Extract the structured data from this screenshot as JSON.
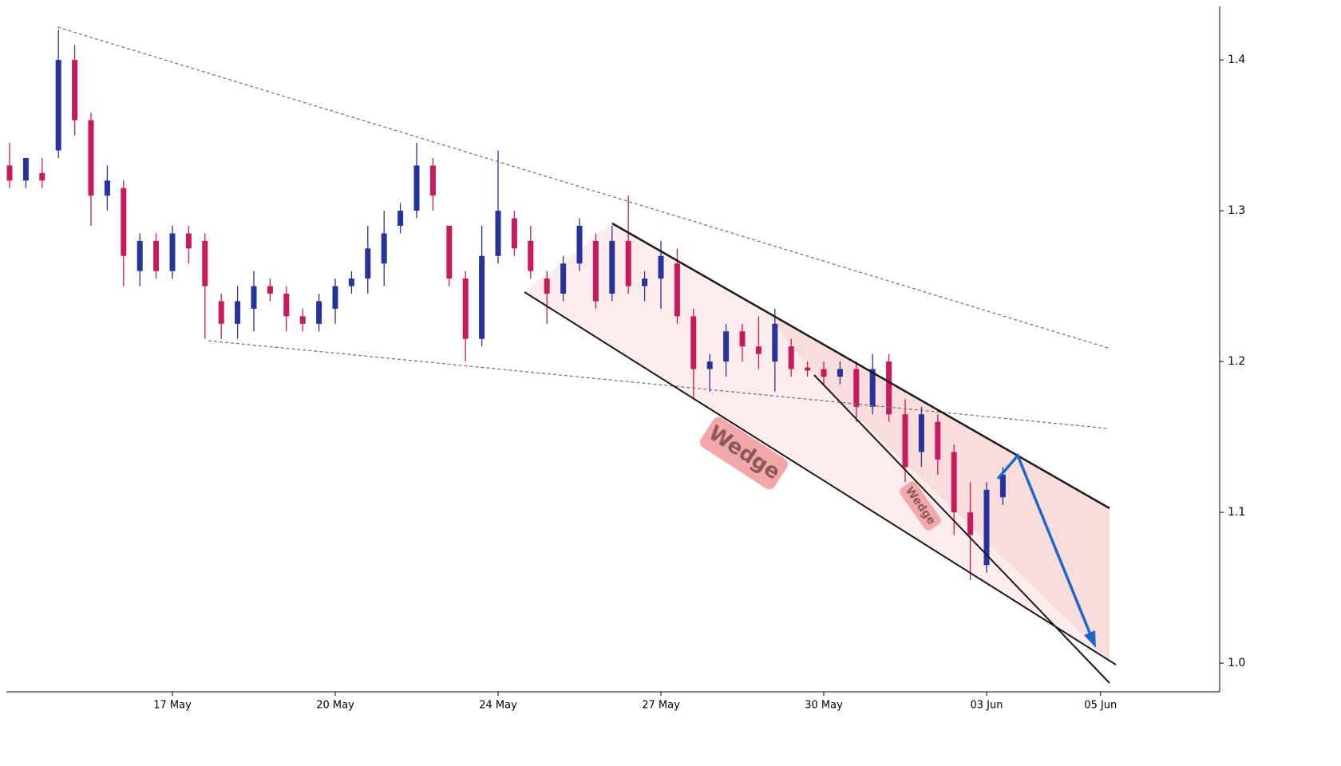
{
  "chart_data": {
    "type": "candlestick",
    "categories": [
      null,
      null,
      null,
      null,
      null,
      null,
      null,
      null,
      null,
      null,
      "17 May",
      null,
      null,
      null,
      null,
      null,
      null,
      null,
      null,
      null,
      "20 May",
      null,
      null,
      null,
      null,
      null,
      null,
      null,
      null,
      null,
      "24 May",
      null,
      null,
      null,
      null,
      null,
      null,
      null,
      null,
      null,
      "27 May",
      null,
      null,
      null,
      null,
      null,
      null,
      null,
      null,
      null,
      "30 May",
      null,
      null,
      null,
      null,
      null,
      null,
      null,
      null,
      null,
      "03 Jun",
      null,
      null,
      null,
      null,
      null,
      null,
      "05 Jun"
    ],
    "open": [
      1.33,
      1.32,
      1.325,
      1.34,
      1.4,
      1.36,
      1.31,
      1.315,
      1.26,
      1.28,
      1.26,
      1.285,
      1.28,
      1.24,
      1.225,
      1.235,
      1.25,
      1.245,
      1.23,
      1.225,
      1.235,
      1.25,
      1.255,
      1.265,
      1.29,
      1.3,
      1.33,
      1.29,
      1.255,
      1.215,
      1.27,
      1.295,
      1.28,
      1.255,
      1.245,
      1.265,
      1.28,
      1.245,
      1.28,
      1.25,
      1.255,
      1.265,
      1.23,
      1.195,
      1.2,
      1.22,
      1.21,
      1.2,
      1.21,
      1.196,
      1.195,
      1.19,
      1.195,
      1.17,
      1.2,
      1.165,
      1.14,
      1.16,
      1.14,
      1.1,
      1.065,
      1.11,
      null,
      null,
      null,
      null,
      null,
      null
    ],
    "high": [
      1.345,
      1.335,
      1.335,
      1.42,
      1.41,
      1.365,
      1.33,
      1.32,
      1.285,
      1.285,
      1.29,
      1.29,
      1.285,
      1.245,
      1.25,
      1.26,
      1.255,
      1.25,
      1.235,
      1.245,
      1.255,
      1.26,
      1.29,
      1.3,
      1.305,
      1.345,
      1.335,
      1.29,
      1.26,
      1.29,
      1.34,
      1.3,
      1.29,
      1.26,
      1.27,
      1.295,
      1.285,
      1.29,
      1.31,
      1.26,
      1.28,
      1.275,
      1.235,
      1.205,
      1.225,
      1.225,
      1.23,
      1.235,
      1.215,
      1.2,
      1.2,
      1.2,
      1.2,
      1.205,
      1.205,
      1.175,
      1.17,
      1.165,
      1.145,
      1.12,
      1.12,
      1.13,
      null,
      null,
      null,
      null,
      null,
      null
    ],
    "low": [
      1.315,
      1.315,
      1.315,
      1.335,
      1.35,
      1.29,
      1.3,
      1.25,
      1.25,
      1.255,
      1.255,
      1.265,
      1.215,
      1.215,
      1.215,
      1.22,
      1.24,
      1.22,
      1.22,
      1.22,
      1.225,
      1.245,
      1.245,
      1.25,
      1.285,
      1.295,
      1.3,
      1.25,
      1.2,
      1.21,
      1.265,
      1.27,
      1.255,
      1.225,
      1.24,
      1.26,
      1.235,
      1.24,
      1.245,
      1.24,
      1.235,
      1.225,
      1.175,
      1.18,
      1.19,
      1.2,
      1.195,
      1.18,
      1.19,
      1.19,
      1.185,
      1.185,
      1.16,
      1.165,
      1.16,
      1.12,
      1.13,
      1.125,
      1.085,
      1.055,
      1.06,
      1.105,
      null,
      null,
      null,
      null,
      null,
      null
    ],
    "close": [
      1.32,
      1.335,
      1.32,
      1.4,
      1.36,
      1.31,
      1.32,
      1.27,
      1.28,
      1.26,
      1.285,
      1.275,
      1.25,
      1.225,
      1.24,
      1.25,
      1.245,
      1.23,
      1.225,
      1.24,
      1.25,
      1.255,
      1.275,
      1.285,
      1.3,
      1.33,
      1.31,
      1.255,
      1.215,
      1.27,
      1.3,
      1.275,
      1.26,
      1.245,
      1.265,
      1.29,
      1.24,
      1.28,
      1.25,
      1.255,
      1.27,
      1.23,
      1.195,
      1.2,
      1.22,
      1.21,
      1.205,
      1.225,
      1.195,
      1.194,
      1.19,
      1.195,
      1.17,
      1.195,
      1.165,
      1.13,
      1.165,
      1.135,
      1.1,
      1.085,
      1.115,
      1.125,
      null,
      null,
      null,
      null,
      null,
      null
    ],
    "up_color": "#26339a",
    "down_color": "#c8195a",
    "ylim": [
      0.981,
      1.4355
    ],
    "yticks": [
      {
        "value": 1,
        "label": "1.0"
      },
      1.1,
      1.2,
      1.3,
      1.4
    ],
    "annotations": [
      "Wedge",
      "Wedge"
    ]
  }
}
